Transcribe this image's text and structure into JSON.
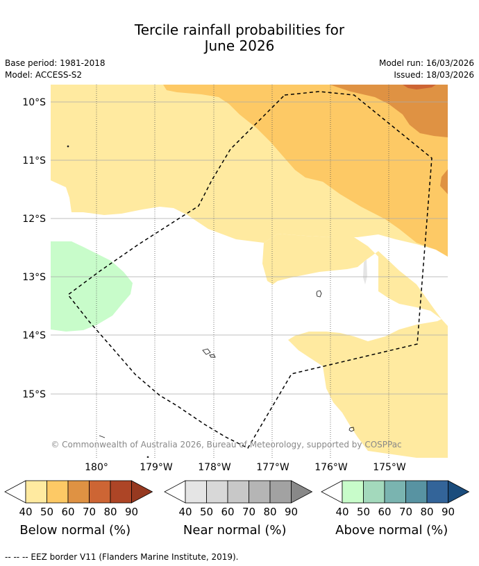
{
  "title": {
    "line1": "Tercile rainfall probabilities for",
    "line2": "June 2026"
  },
  "meta": {
    "base_period": "Base period: 1981-2018",
    "model": "Model: ACCESS-S2",
    "model_run": "Model run: 16/03/2026",
    "issued": "Issued: 18/03/2026"
  },
  "map": {
    "lat_labels": [
      "10°S",
      "11°S",
      "12°S",
      "13°S",
      "14°S",
      "15°S"
    ],
    "lon_labels": [
      "180°",
      "179°W",
      "178°W",
      "177°W",
      "176°W",
      "175°W"
    ],
    "copyright": "© Commonwealth of Australia 2026, Bureau of Meteorology, supported by COSPPac"
  },
  "colorbars": {
    "tick_labels": [
      "40",
      "50",
      "60",
      "70",
      "80",
      "90"
    ],
    "below": {
      "title": "Below normal (%)",
      "colors": [
        "#ffeaa0",
        "#fdc965",
        "#df9243",
        "#cd6534",
        "#ad4526",
        "#963920"
      ]
    },
    "near": {
      "title": "Near normal (%)",
      "colors": [
        "#e5e5e5",
        "#d8d8d8",
        "#c8c8c8",
        "#b5b5b5",
        "#a2a2a2",
        "#888888"
      ]
    },
    "above": {
      "title": "Above normal (%)",
      "colors": [
        "#c8fcca",
        "#a3d9bc",
        "#7ab4b0",
        "#5893a2",
        "#336499",
        "#1a4c7c"
      ]
    }
  },
  "footer": "-- -- -- EEZ border V11 (Flanders Marine Institute, 2019)."
}
